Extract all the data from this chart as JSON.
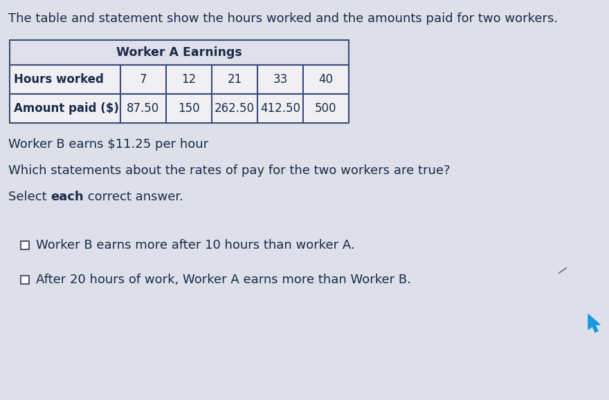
{
  "background_color": "#dde0e8",
  "title_text": "The table and statement show the hours worked and the amounts paid for two workers.",
  "title_fontsize": 13,
  "table_title": "Worker A Earnings",
  "table_title_fontsize": 12.5,
  "row1_label": "Hours worked",
  "row1_values": [
    "7",
    "12",
    "21",
    "33",
    "40"
  ],
  "row2_label": "Amount paid ($)",
  "row2_values": [
    "87.50",
    "150",
    "262.50",
    "412.50",
    "500"
  ],
  "statement_text": "Worker B earns $11.25 per hour",
  "question_text": "Which statements about the rates of pay for the two workers are true?",
  "instruction_normal1": "Select ",
  "instruction_bold": "each",
  "instruction_normal2": " correct answer.",
  "answer1_text": "Worker B earns more after 10 hours than worker A.",
  "answer2_text": "After 20 hours of work, Worker A earns more than Worker B.",
  "body_fontsize": 13,
  "table_border_color": "#3a4a7a",
  "table_bg": "#f0f0f4",
  "table_header_bg": "#e0e0ea",
  "text_color": "#1a2a4a",
  "checkbox_color": "#555577",
  "cursor_color": "#1a9ae0"
}
